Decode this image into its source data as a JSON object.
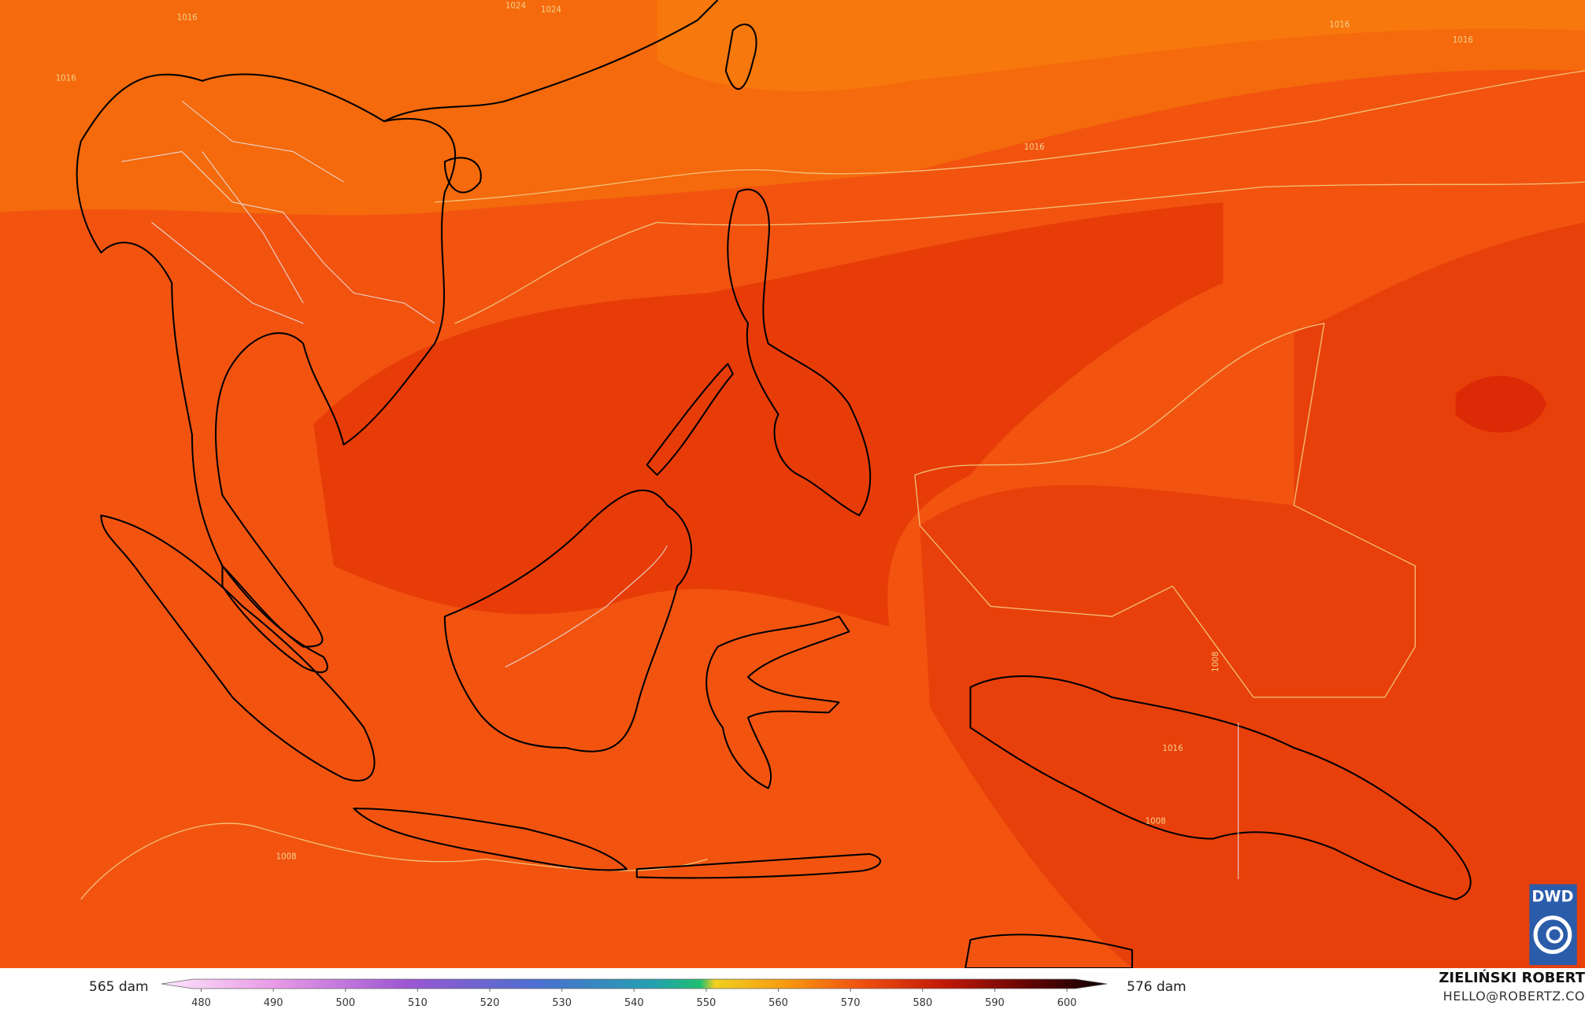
{
  "colorbar": {
    "left_label": "565 dam",
    "right_label": "576 dam",
    "ticks": [
      480,
      490,
      500,
      510,
      520,
      530,
      540,
      550,
      560,
      570,
      580,
      590,
      600
    ]
  },
  "isobar_labels": [
    "1024",
    "1024",
    "1016",
    "1016",
    "1016",
    "1016",
    "1016",
    "1008",
    "1008",
    "1008",
    "1016"
  ],
  "credit": {
    "name": "ZIELIŃSKI ROBERT",
    "contact": "HELLO@ROBERTZ.CO"
  },
  "logo": {
    "text": "DWD"
  }
}
